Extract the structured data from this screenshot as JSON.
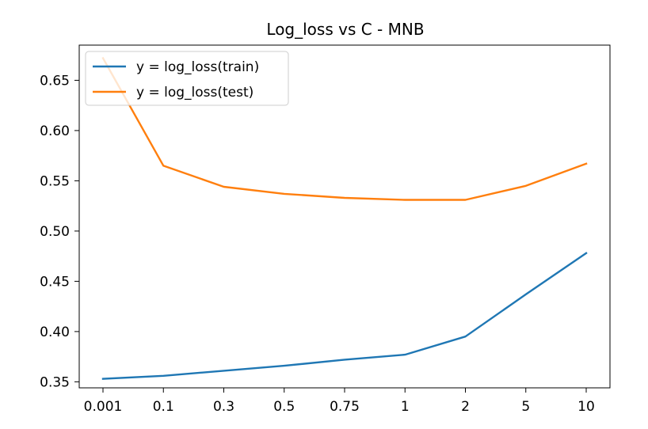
{
  "chart_data": {
    "type": "line",
    "title": "Log_loss vs C - MNB",
    "xlabel": "",
    "ylabel": "",
    "categories": [
      "0.001",
      "0.1",
      "0.3",
      "0.5",
      "0.75",
      "1",
      "2",
      "5",
      "10"
    ],
    "yticks": [
      "0.35",
      "0.40",
      "0.45",
      "0.50",
      "0.55",
      "0.60",
      "0.65"
    ],
    "ylim": [
      0.344,
      0.685
    ],
    "grid": false,
    "legend_position": "top-left",
    "series": [
      {
        "name": "y = log_loss(train)",
        "color": "#1f77b4",
        "values": [
          0.353,
          0.356,
          0.361,
          0.366,
          0.372,
          0.377,
          0.395,
          0.437,
          0.478
        ]
      },
      {
        "name": "y = log_loss(test)",
        "color": "#ff7f0e",
        "values": [
          0.672,
          0.565,
          0.544,
          0.537,
          0.533,
          0.531,
          0.531,
          0.545,
          0.567
        ]
      }
    ]
  }
}
